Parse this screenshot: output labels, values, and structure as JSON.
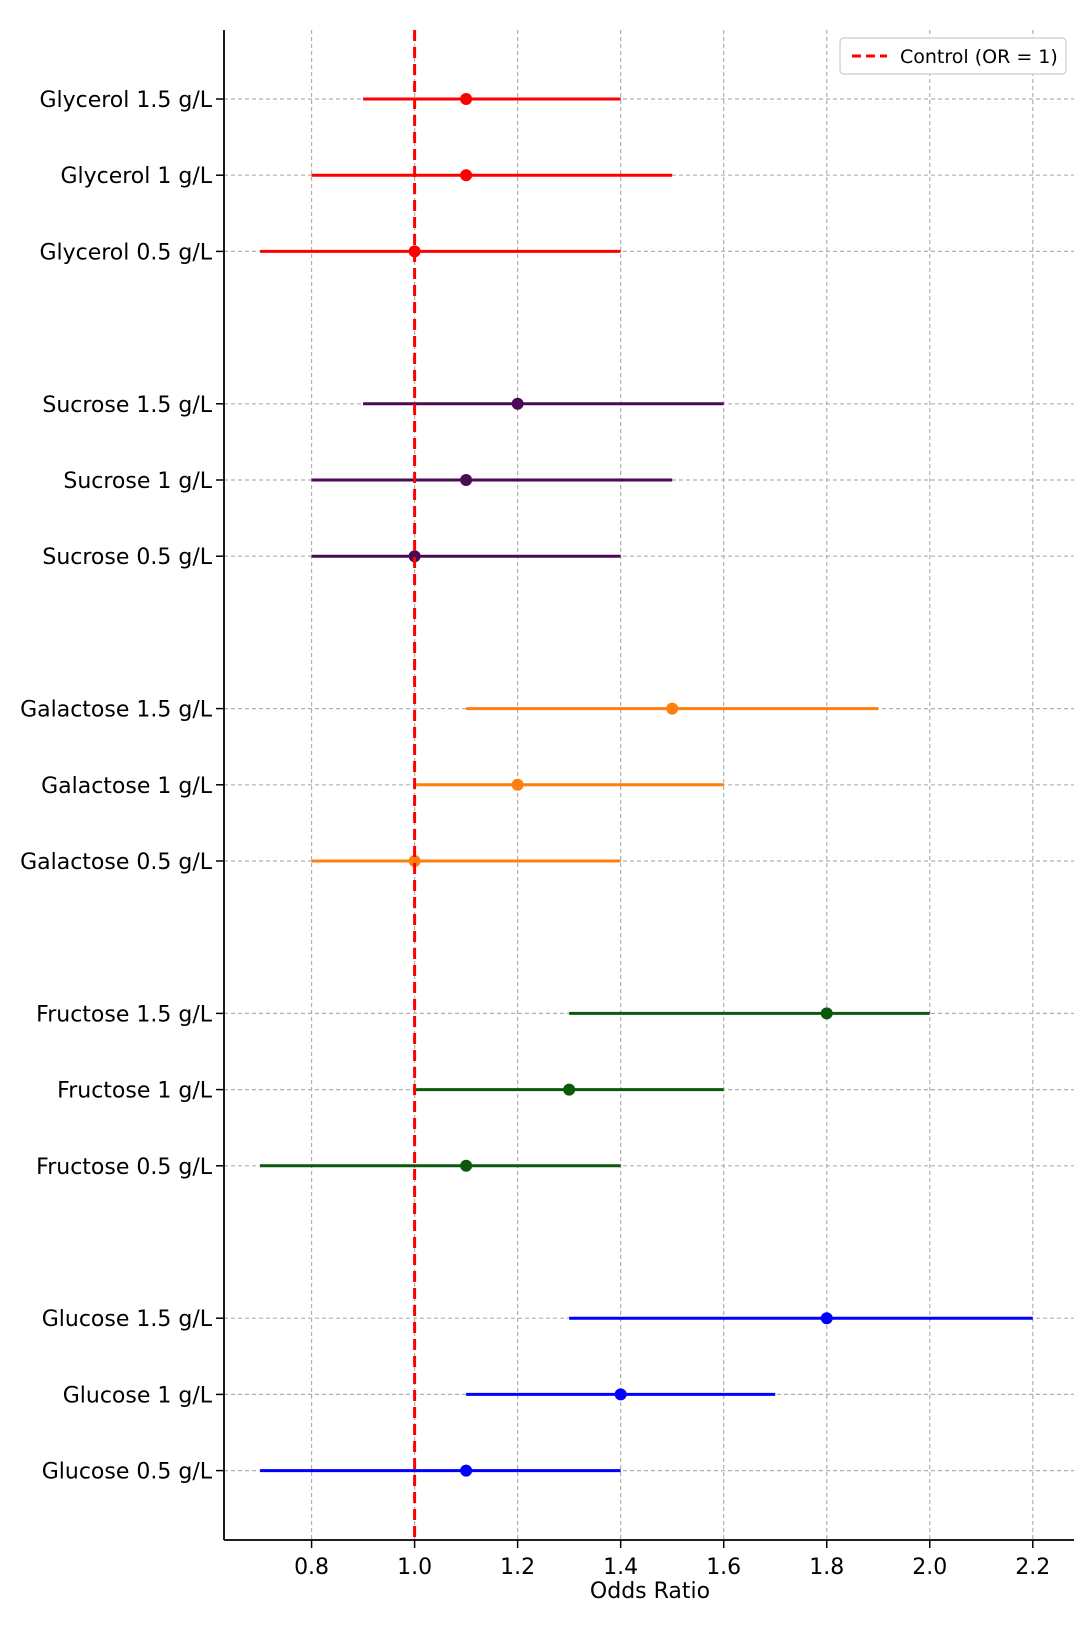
{
  "chart_data": {
    "type": "forest",
    "xlabel": "Odds Ratio",
    "xlim": [
      0.63,
      2.28
    ],
    "xticks": [
      0.8,
      1.0,
      1.2,
      1.4,
      1.6,
      1.8,
      2.0,
      2.2
    ],
    "xtick_labels": [
      "0.8",
      "1.0",
      "1.2",
      "1.4",
      "1.6",
      "1.8",
      "2.0",
      "2.2"
    ],
    "grid": true,
    "legend_position": "top-right",
    "reference_line": {
      "value": 1.0,
      "label": "Control (OR = 1)",
      "color": "#ff0000",
      "style": "dashed"
    },
    "groups": [
      {
        "color": "#ff0000",
        "rows": [
          {
            "label": "Glycerol 1.5 g/L",
            "or": 1.1,
            "lower": 0.9,
            "upper": 1.4
          },
          {
            "label": "Glycerol 1 g/L",
            "or": 1.1,
            "lower": 0.8,
            "upper": 1.5
          },
          {
            "label": "Glycerol 0.5 g/L",
            "or": 1.0,
            "lower": 0.7,
            "upper": 1.4
          }
        ]
      },
      {
        "color": "#4b0a55",
        "rows": [
          {
            "label": "Sucrose 1.5 g/L",
            "or": 1.2,
            "lower": 0.9,
            "upper": 1.6
          },
          {
            "label": "Sucrose 1 g/L",
            "or": 1.1,
            "lower": 0.8,
            "upper": 1.5
          },
          {
            "label": "Sucrose 0.5 g/L",
            "or": 1.0,
            "lower": 0.8,
            "upper": 1.4
          }
        ]
      },
      {
        "color": "#ff7f0e",
        "rows": [
          {
            "label": "Galactose 1.5 g/L",
            "or": 1.5,
            "lower": 1.1,
            "upper": 1.9
          },
          {
            "label": "Galactose 1 g/L",
            "or": 1.2,
            "lower": 1.0,
            "upper": 1.6
          },
          {
            "label": "Galactose 0.5 g/L",
            "or": 1.0,
            "lower": 0.8,
            "upper": 1.4
          }
        ]
      },
      {
        "color": "#0b5a0b",
        "rows": [
          {
            "label": "Fructose 1.5 g/L",
            "or": 1.8,
            "lower": 1.3,
            "upper": 2.0
          },
          {
            "label": "Fructose 1 g/L",
            "or": 1.3,
            "lower": 1.0,
            "upper": 1.6
          },
          {
            "label": "Fructose 0.5 g/L",
            "or": 1.1,
            "lower": 0.7,
            "upper": 1.4
          }
        ]
      },
      {
        "color": "#0000ff",
        "rows": [
          {
            "label": "Glucose 1.5 g/L",
            "or": 1.8,
            "lower": 1.3,
            "upper": 2.2
          },
          {
            "label": "Glucose 1 g/L",
            "or": 1.4,
            "lower": 1.1,
            "upper": 1.7
          },
          {
            "label": "Glucose 0.5 g/L",
            "or": 1.1,
            "lower": 0.7,
            "upper": 1.4
          }
        ]
      }
    ]
  }
}
